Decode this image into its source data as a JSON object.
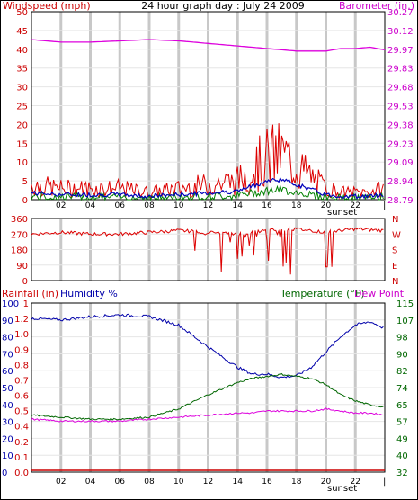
{
  "top": {
    "title": "24 hour graph day : July 24 2009",
    "left_label": "Windspeed (mph)",
    "right_label": "Barometer (in.)",
    "left_ticks": [
      "50",
      "45",
      "40",
      "35",
      "30",
      "25",
      "20",
      "15",
      "10",
      "5",
      "0"
    ],
    "right_ticks": [
      "30.27",
      "30.12",
      "29.97",
      "29.83",
      "29.68",
      "29.53",
      "29.38",
      "29.23",
      "29.09",
      "28.94",
      "28.79"
    ],
    "x_ticks": [
      "02",
      "04",
      "06",
      "08",
      "10",
      "12",
      "14",
      "16",
      "18",
      "20",
      "22"
    ],
    "sunset_label": "sunset",
    "end_tick": "|"
  },
  "middle": {
    "left_ticks": [
      "360",
      "270",
      "180",
      "90",
      "0"
    ],
    "right_ticks": [
      "N",
      "W",
      "S",
      "E",
      "N"
    ]
  },
  "bottom": {
    "label_rain": "Rainfall (in)",
    "label_humidity": "Humidity %",
    "label_temp": "Temperature (°F)",
    "label_dew": "Dew Point",
    "humidity_ticks": [
      "100",
      "90",
      "80",
      "70",
      "60",
      "50",
      "40",
      "30",
      "20",
      "10",
      "0"
    ],
    "rain_ticks": [
      "1",
      "1.2",
      "1.0",
      "0.9",
      "0.8",
      "0.7",
      "0.6",
      "0.5",
      "0.4",
      "0.2",
      "0.1",
      "0.0"
    ],
    "right_ticks": [
      "115",
      "107",
      "98",
      "90",
      "82",
      "74",
      "65",
      "57",
      "49",
      "40",
      "32"
    ],
    "x_ticks": [
      "02",
      "04",
      "06",
      "08",
      "10",
      "12",
      "14",
      "16",
      "18",
      "20",
      "22"
    ],
    "sunset_label": "sunset",
    "end_tick": "|"
  },
  "colors": {
    "wind": "#dd0000",
    "gust_avg": "#0000bb",
    "wind_green": "#008000",
    "barometer": "#dd00dd",
    "left_text": "#cc0000",
    "right_text": "#cc00cc",
    "humidity": "#0000aa",
    "temperature": "#006600",
    "dewpoint": "#dd00dd",
    "rain": "#cc0000",
    "grid": "#c8c8c8"
  },
  "chart_data": [
    {
      "type": "line",
      "title": "24 hour graph day : July 24 2009",
      "x": [
        0,
        2,
        4,
        6,
        8,
        10,
        12,
        14,
        15,
        16,
        17,
        18,
        19,
        20,
        21,
        22,
        23,
        24
      ],
      "series": [
        {
          "name": "Windspeed (mph)",
          "values": [
            4,
            3,
            3,
            3,
            2,
            3,
            4,
            5,
            8,
            11,
            12,
            9,
            6,
            3,
            2,
            2,
            2,
            3
          ]
        },
        {
          "name": "Barometer (in.)",
          "values": [
            30.05,
            30.03,
            30.03,
            30.04,
            30.05,
            30.04,
            30.02,
            30.0,
            29.99,
            29.98,
            29.97,
            29.96,
            29.96,
            29.96,
            29.98,
            29.98,
            29.99,
            29.97
          ]
        }
      ],
      "xlabel": "",
      "ylabel": "Windspeed (mph)",
      "ylim": [
        0,
        50
      ],
      "y2label": "Barometer (in.)",
      "y2lim": [
        28.79,
        30.27
      ]
    },
    {
      "type": "scatter",
      "x": [
        0,
        2,
        4,
        6,
        8,
        10,
        12,
        14,
        16,
        18,
        20,
        22,
        24
      ],
      "series": [
        {
          "values": [
            270,
            280,
            270,
            270,
            280,
            290,
            280,
            270,
            290,
            300,
            280,
            300,
            290
          ]
        }
      ],
      "ylim": [
        0,
        360
      ]
    },
    {
      "type": "line",
      "x": [
        0,
        2,
        4,
        6,
        8,
        10,
        12,
        14,
        15,
        16,
        17,
        18,
        19,
        20,
        21,
        22,
        23,
        24
      ],
      "series": [
        {
          "name": "Humidity %",
          "values": [
            91,
            90,
            92,
            93,
            92,
            87,
            74,
            62,
            58,
            58,
            56,
            57,
            62,
            71,
            80,
            87,
            89,
            85
          ]
        },
        {
          "name": "Temperature (°F)",
          "values": [
            60,
            59,
            58,
            58,
            59,
            63,
            70,
            76,
            78,
            79,
            80,
            79,
            78,
            75,
            70,
            67,
            65,
            64
          ]
        },
        {
          "name": "Dew Point",
          "values": [
            58,
            57,
            57,
            57,
            58,
            59,
            60,
            61,
            61,
            62,
            62,
            62,
            62,
            63,
            62,
            61,
            61,
            60
          ]
        },
        {
          "name": "Rainfall (in)",
          "values": [
            0,
            0,
            0,
            0,
            0,
            0,
            0,
            0,
            0,
            0,
            0,
            0,
            0,
            0,
            0,
            0,
            0,
            0
          ]
        }
      ],
      "ylabel": "Humidity %",
      "ylim": [
        0,
        100
      ],
      "y2label": "Temperature (°F)",
      "y2lim": [
        32,
        115
      ]
    }
  ]
}
